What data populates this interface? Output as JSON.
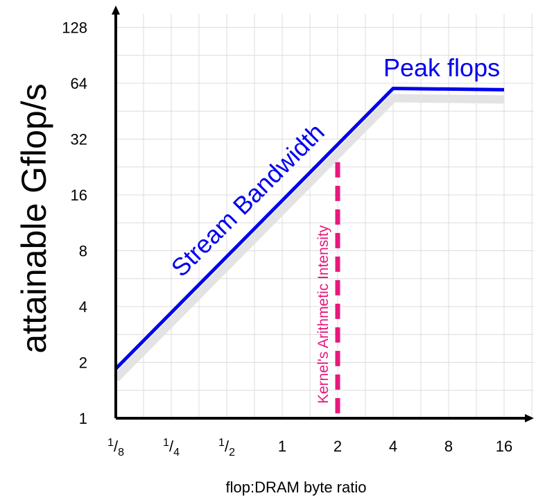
{
  "chart_data": {
    "type": "line",
    "title": "",
    "xlabel": "flop:DRAM byte ratio",
    "ylabel": "attainable Gflop/s",
    "x_scale": "log2",
    "y_scale": "log2",
    "xlim": [
      0.125,
      16
    ],
    "ylim": [
      1,
      128
    ],
    "x_ticks": [
      {
        "value": 0.125,
        "num": "1",
        "den": "8",
        "label": ""
      },
      {
        "value": 0.25,
        "num": "1",
        "den": "4",
        "label": ""
      },
      {
        "value": 0.5,
        "num": "1",
        "den": "2",
        "label": ""
      },
      {
        "value": 1,
        "num": "",
        "den": "",
        "label": "1"
      },
      {
        "value": 2,
        "num": "",
        "den": "",
        "label": "2"
      },
      {
        "value": 4,
        "num": "",
        "den": "",
        "label": "4"
      },
      {
        "value": 8,
        "num": "",
        "den": "",
        "label": "8"
      },
      {
        "value": 16,
        "num": "",
        "den": "",
        "label": "16"
      }
    ],
    "y_ticks": [
      {
        "value": 1,
        "label": "1"
      },
      {
        "value": 2,
        "label": "2"
      },
      {
        "value": 4,
        "label": "4"
      },
      {
        "value": 8,
        "label": "8"
      },
      {
        "value": 16,
        "label": "16"
      },
      {
        "value": 32,
        "label": "32"
      },
      {
        "value": 64,
        "label": "64"
      },
      {
        "value": 128,
        "label": "128"
      }
    ],
    "grid": true,
    "roofline": {
      "points": [
        [
          0.125,
          1.85
        ],
        [
          4,
          60
        ],
        [
          16,
          59
        ]
      ],
      "color": "#0000ee",
      "shadow_color": "#e3e3e3"
    },
    "annotations": [
      {
        "text": "Peak flops",
        "x": 5.5,
        "y": 76,
        "color": "#0000ee"
      },
      {
        "text": "Stream Bandwidth",
        "x": 0.85,
        "y": 14,
        "color": "#0000ee"
      }
    ],
    "kernel_line": {
      "x": 2,
      "y_top": 24,
      "label": "Kernel's Arithmetic Intensity",
      "color": "#e8177d"
    }
  }
}
